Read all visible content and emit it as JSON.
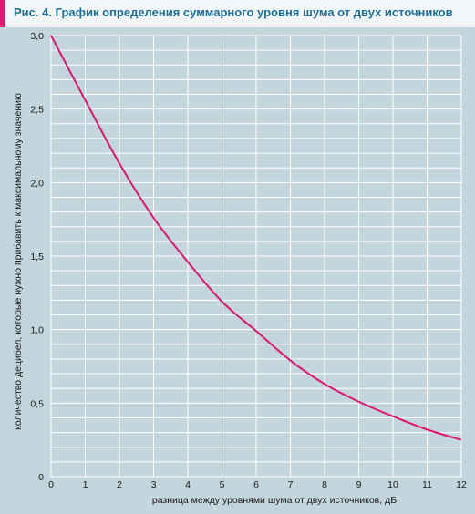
{
  "colors": {
    "panel": "#c3d5dd",
    "title_bar": "#f2f6f8",
    "accent": "#e0176f",
    "title_text": "#1d6f99",
    "curve": "#e0176f",
    "grid": "#ffffff"
  },
  "chart_data": {
    "type": "line",
    "title": "Рис. 4. График определения суммарного уровня шума от двух источников",
    "xlabel": "разница между уровнями шума от двух источников, дБ",
    "ylabel": "количество децибел, которые нужно прибавить к максимальному значению",
    "xlim": [
      0,
      12
    ],
    "ylim": [
      0,
      3
    ],
    "grid": true,
    "x_ticks": [
      "0",
      "1",
      "2",
      "3",
      "4",
      "5",
      "6",
      "7",
      "8",
      "9",
      "10",
      "11",
      "12"
    ],
    "y_ticks": [
      {
        "value": 0,
        "label": "0"
      },
      {
        "value": 0.5,
        "label": "0,5"
      },
      {
        "value": 1,
        "label": "1,0"
      },
      {
        "value": 1.5,
        "label": "1,5"
      },
      {
        "value": 2,
        "label": "2,0"
      },
      {
        "value": 2.5,
        "label": "2,5"
      },
      {
        "value": 3,
        "label": "3,0"
      }
    ],
    "series": [
      {
        "x": [
          0,
          1,
          2,
          3,
          4,
          5,
          6,
          7,
          8,
          9,
          10,
          11,
          12
        ],
        "y": [
          3.0,
          2.56,
          2.13,
          1.76,
          1.46,
          1.19,
          0.99,
          0.79,
          0.63,
          0.51,
          0.41,
          0.32,
          0.25
        ]
      }
    ]
  }
}
